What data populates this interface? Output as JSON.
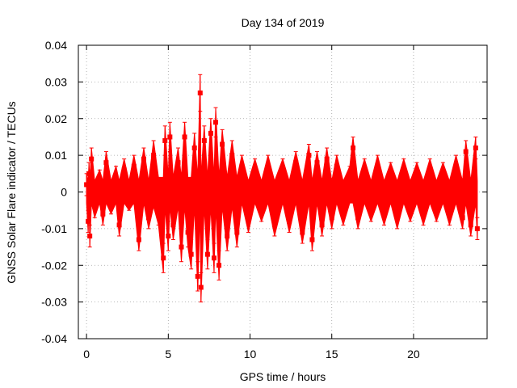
{
  "chart_data": {
    "type": "scatter",
    "title": "Day 134 of 2019",
    "xlabel": "GPS time / hours",
    "ylabel": "GNSS Solar Flare indicator / TECUs",
    "xlim": [
      -0.5,
      24.5
    ],
    "ylim": [
      -0.04,
      0.04
    ],
    "xticks": [
      0,
      5,
      10,
      15,
      20
    ],
    "xtick_labels": [
      "0",
      "5",
      "10",
      "15",
      "20"
    ],
    "yticks": [
      -0.04,
      -0.03,
      -0.02,
      -0.01,
      0,
      0.01,
      0.02,
      0.03,
      0.04
    ],
    "ytick_labels": [
      "-0.04",
      "-0.03",
      "-0.02",
      "-0.01",
      "0",
      "0.01",
      "0.02",
      "0.03",
      "0.04"
    ],
    "grid": true,
    "legend": "none",
    "series": [
      {
        "color": "#ff0000",
        "marker": "square",
        "error_bars": true,
        "points": [
          {
            "x": 0.0,
            "y": 0.002,
            "err": 0.003
          },
          {
            "x": 0.1,
            "y": -0.008,
            "err": 0.003
          },
          {
            "x": 0.15,
            "y": 0.005,
            "err": 0.003
          },
          {
            "x": 0.2,
            "y": -0.012,
            "err": 0.003
          },
          {
            "x": 0.3,
            "y": 0.009,
            "err": 0.003
          },
          {
            "x": 0.5,
            "y": -0.004,
            "err": 0.003
          },
          {
            "x": 0.8,
            "y": 0.003,
            "err": 0.003
          },
          {
            "x": 1.0,
            "y": -0.006,
            "err": 0.003
          },
          {
            "x": 1.2,
            "y": 0.008,
            "err": 0.003
          },
          {
            "x": 1.5,
            "y": -0.003,
            "err": 0.003
          },
          {
            "x": 1.8,
            "y": 0.004,
            "err": 0.003
          },
          {
            "x": 2.0,
            "y": -0.009,
            "err": 0.003
          },
          {
            "x": 2.3,
            "y": 0.006,
            "err": 0.003
          },
          {
            "x": 2.6,
            "y": -0.002,
            "err": 0.003
          },
          {
            "x": 2.9,
            "y": 0.007,
            "err": 0.003
          },
          {
            "x": 3.2,
            "y": -0.013,
            "err": 0.003
          },
          {
            "x": 3.5,
            "y": 0.009,
            "err": 0.003
          },
          {
            "x": 3.8,
            "y": -0.007,
            "err": 0.003
          },
          {
            "x": 4.1,
            "y": 0.01,
            "err": 0.004
          },
          {
            "x": 4.4,
            "y": -0.005,
            "err": 0.004
          },
          {
            "x": 4.7,
            "y": -0.018,
            "err": 0.004
          },
          {
            "x": 4.8,
            "y": 0.014,
            "err": 0.004
          },
          {
            "x": 5.0,
            "y": -0.012,
            "err": 0.004
          },
          {
            "x": 5.1,
            "y": 0.015,
            "err": 0.004
          },
          {
            "x": 5.3,
            "y": -0.009,
            "err": 0.004
          },
          {
            "x": 5.6,
            "y": 0.008,
            "err": 0.004
          },
          {
            "x": 5.8,
            "y": -0.015,
            "err": 0.004
          },
          {
            "x": 6.0,
            "y": 0.015,
            "err": 0.004
          },
          {
            "x": 6.2,
            "y": -0.011,
            "err": 0.004
          },
          {
            "x": 6.4,
            "y": -0.017,
            "err": 0.004
          },
          {
            "x": 6.6,
            "y": 0.012,
            "err": 0.004
          },
          {
            "x": 6.8,
            "y": -0.023,
            "err": 0.004
          },
          {
            "x": 6.95,
            "y": 0.027,
            "err": 0.005
          },
          {
            "x": 7.0,
            "y": -0.026,
            "err": 0.004
          },
          {
            "x": 7.2,
            "y": 0.014,
            "err": 0.004
          },
          {
            "x": 7.4,
            "y": -0.017,
            "err": 0.004
          },
          {
            "x": 7.6,
            "y": 0.016,
            "err": 0.004
          },
          {
            "x": 7.8,
            "y": -0.018,
            "err": 0.004
          },
          {
            "x": 7.9,
            "y": 0.019,
            "err": 0.004
          },
          {
            "x": 8.1,
            "y": -0.02,
            "err": 0.004
          },
          {
            "x": 8.3,
            "y": 0.013,
            "err": 0.004
          },
          {
            "x": 8.6,
            "y": -0.012,
            "err": 0.004
          },
          {
            "x": 8.9,
            "y": 0.01,
            "err": 0.004
          },
          {
            "x": 9.2,
            "y": -0.011,
            "err": 0.004
          },
          {
            "x": 9.5,
            "y": 0.007,
            "err": 0.003
          },
          {
            "x": 9.9,
            "y": -0.008,
            "err": 0.003
          },
          {
            "x": 10.3,
            "y": 0.006,
            "err": 0.003
          },
          {
            "x": 10.7,
            "y": -0.005,
            "err": 0.003
          },
          {
            "x": 11.1,
            "y": 0.007,
            "err": 0.003
          },
          {
            "x": 11.5,
            "y": -0.009,
            "err": 0.003
          },
          {
            "x": 12.0,
            "y": 0.006,
            "err": 0.003
          },
          {
            "x": 12.4,
            "y": -0.008,
            "err": 0.003
          },
          {
            "x": 12.8,
            "y": 0.008,
            "err": 0.003
          },
          {
            "x": 13.2,
            "y": -0.011,
            "err": 0.003
          },
          {
            "x": 13.6,
            "y": 0.01,
            "err": 0.003
          },
          {
            "x": 13.8,
            "y": -0.013,
            "err": 0.003
          },
          {
            "x": 14.1,
            "y": 0.008,
            "err": 0.003
          },
          {
            "x": 14.4,
            "y": -0.009,
            "err": 0.003
          },
          {
            "x": 14.7,
            "y": 0.009,
            "err": 0.003
          },
          {
            "x": 15.0,
            "y": -0.007,
            "err": 0.003
          },
          {
            "x": 15.3,
            "y": 0.007,
            "err": 0.003
          },
          {
            "x": 15.7,
            "y": -0.006,
            "err": 0.003
          },
          {
            "x": 16.1,
            "y": 0.004,
            "err": 0.003
          },
          {
            "x": 16.3,
            "y": 0.012,
            "err": 0.003
          },
          {
            "x": 16.6,
            "y": -0.007,
            "err": 0.003
          },
          {
            "x": 17.0,
            "y": 0.006,
            "err": 0.003
          },
          {
            "x": 17.4,
            "y": -0.005,
            "err": 0.003
          },
          {
            "x": 17.8,
            "y": 0.007,
            "err": 0.003
          },
          {
            "x": 18.2,
            "y": -0.006,
            "err": 0.003
          },
          {
            "x": 18.6,
            "y": 0.005,
            "err": 0.003
          },
          {
            "x": 19.0,
            "y": -0.007,
            "err": 0.003
          },
          {
            "x": 19.4,
            "y": 0.006,
            "err": 0.003
          },
          {
            "x": 19.8,
            "y": -0.005,
            "err": 0.003
          },
          {
            "x": 20.2,
            "y": 0.005,
            "err": 0.003
          },
          {
            "x": 20.6,
            "y": -0.006,
            "err": 0.003
          },
          {
            "x": 21.0,
            "y": 0.006,
            "err": 0.003
          },
          {
            "x": 21.4,
            "y": -0.005,
            "err": 0.003
          },
          {
            "x": 21.8,
            "y": 0.005,
            "err": 0.003
          },
          {
            "x": 22.2,
            "y": -0.006,
            "err": 0.003
          },
          {
            "x": 22.6,
            "y": 0.007,
            "err": 0.003
          },
          {
            "x": 23.0,
            "y": -0.007,
            "err": 0.003
          },
          {
            "x": 23.2,
            "y": 0.011,
            "err": 0.003
          },
          {
            "x": 23.5,
            "y": -0.009,
            "err": 0.003
          },
          {
            "x": 23.8,
            "y": 0.012,
            "err": 0.003
          },
          {
            "x": 23.9,
            "y": -0.01,
            "err": 0.003
          }
        ]
      }
    ]
  }
}
